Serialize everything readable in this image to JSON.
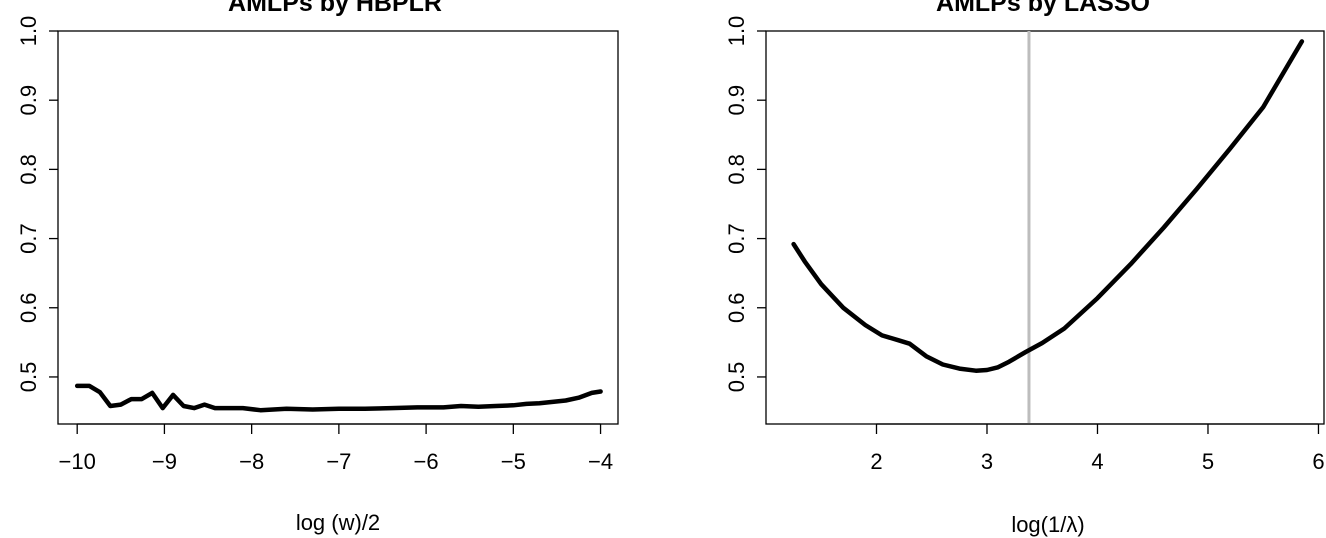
{
  "chart_data": [
    {
      "type": "line",
      "title": "AMLPs by HBPLR",
      "xlabel": "log (w)/2",
      "ylabel": "",
      "xlim": [
        -10.22,
        -3.8
      ],
      "ylim": [
        0.432,
        1.0
      ],
      "xticks": [
        -10,
        -9,
        -8,
        -7,
        -6,
        -5,
        -4
      ],
      "xtick_labels": [
        "−10",
        "−9",
        "−8",
        "−7",
        "−6",
        "−5",
        "−4"
      ],
      "yticks": [
        0.5,
        0.6,
        0.7,
        0.8,
        0.9,
        1.0
      ],
      "ytick_labels": [
        "0.5",
        "0.6",
        "0.7",
        "0.8",
        "0.9",
        "1.0"
      ],
      "grid": false,
      "series": [
        {
          "color": "#000000",
          "x": [
            -10.0,
            -9.86,
            -9.74,
            -9.62,
            -9.5,
            -9.38,
            -9.26,
            -9.14,
            -9.02,
            -8.9,
            -8.78,
            -8.66,
            -8.54,
            -8.42,
            -8.3,
            -8.1,
            -7.9,
            -7.6,
            -7.3,
            -7.0,
            -6.7,
            -6.4,
            -6.1,
            -5.8,
            -5.6,
            -5.4,
            -5.2,
            -5.0,
            -4.85,
            -4.7,
            -4.55,
            -4.4,
            -4.25,
            -4.1,
            -4.0
          ],
          "y": [
            0.487,
            0.487,
            0.478,
            0.458,
            0.46,
            0.468,
            0.468,
            0.477,
            0.455,
            0.474,
            0.458,
            0.455,
            0.46,
            0.455,
            0.455,
            0.455,
            0.452,
            0.454,
            0.453,
            0.454,
            0.454,
            0.455,
            0.456,
            0.456,
            0.458,
            0.457,
            0.458,
            0.459,
            0.461,
            0.462,
            0.464,
            0.466,
            0.47,
            0.477,
            0.479
          ]
        }
      ]
    },
    {
      "type": "line",
      "title": "AMLPs by LASSO",
      "xlabel": "log(1/λ)",
      "ylabel": "",
      "xlim": [
        1.0,
        6.05
      ],
      "ylim": [
        0.432,
        1.0
      ],
      "xticks": [
        2,
        3,
        4,
        5,
        6
      ],
      "xtick_labels": [
        "2",
        "3",
        "4",
        "5",
        "6"
      ],
      "yticks": [
        0.5,
        0.6,
        0.7,
        0.8,
        0.9,
        1.0
      ],
      "ytick_labels": [
        "0.5",
        "0.6",
        "0.7",
        "0.8",
        "0.9",
        "1.0"
      ],
      "grid": false,
      "vline": {
        "x": 3.38,
        "color": "#bdbdbd"
      },
      "series": [
        {
          "color": "#000000",
          "x": [
            1.25,
            1.35,
            1.5,
            1.7,
            1.9,
            2.05,
            2.2,
            2.3,
            2.45,
            2.6,
            2.75,
            2.9,
            3.0,
            3.1,
            3.2,
            3.35,
            3.5,
            3.7,
            4.0,
            4.3,
            4.6,
            4.9,
            5.2,
            5.5,
            5.85
          ],
          "y": [
            0.692,
            0.667,
            0.634,
            0.6,
            0.575,
            0.56,
            0.553,
            0.548,
            0.53,
            0.518,
            0.512,
            0.509,
            0.51,
            0.514,
            0.522,
            0.536,
            0.549,
            0.57,
            0.614,
            0.663,
            0.716,
            0.772,
            0.83,
            0.89,
            0.985
          ]
        }
      ]
    }
  ]
}
